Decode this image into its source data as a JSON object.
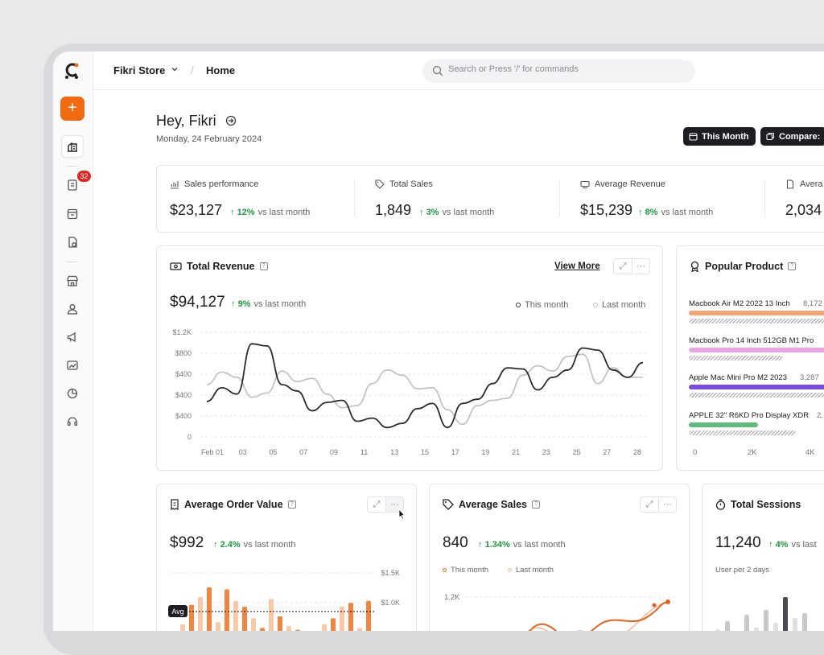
{
  "store": {
    "name": "Fikri Store",
    "crumb": "Home"
  },
  "search": {
    "placeholder": "Search or Press '/' for commands"
  },
  "sidebar": {
    "badge": "32",
    "add_label": "+"
  },
  "header": {
    "greeting": "Hey, Fikri",
    "date": "Monday, 24 February 2024",
    "this_month": "This Month",
    "compare": "Compare: "
  },
  "stats": [
    {
      "label": "Sales performance",
      "value": "$23,127",
      "delta": "12%",
      "vs": "vs last month"
    },
    {
      "label": "Total Sales",
      "value": "1,849",
      "delta": "3%",
      "vs": "vs last month"
    },
    {
      "label": "Average Revenue",
      "value": "$15,239",
      "delta": "8%",
      "vs": "vs last month"
    },
    {
      "label": "Avera",
      "value": "2,034"
    }
  ],
  "revenue": {
    "title": "Total Revenue",
    "view_more": "View More",
    "value": "$94,127",
    "delta": "9%",
    "vs": "vs last month",
    "legend_this": "This month",
    "legend_last": "Last month"
  },
  "chart_data": {
    "type": "line",
    "y_ticks": [
      "$1.2K",
      "$800",
      "$400",
      "$400",
      "$400",
      "0"
    ],
    "x_ticks": [
      "Feb 01",
      "03",
      "05",
      "07",
      "09",
      "11",
      "13",
      "15",
      "17",
      "19",
      "21",
      "23",
      "25",
      "27",
      "28"
    ],
    "series": [
      {
        "name": "This month",
        "color": "#2b2b2e",
        "values": [
          0.34,
          0.47,
          0.41,
          0.89,
          0.87,
          0.5,
          0.44,
          0.25,
          0.33,
          0.35,
          0.15,
          0.18,
          0.09,
          0.13,
          0.27,
          0.32,
          0.09,
          0.32,
          0.36,
          0.51,
          0.66,
          0.65,
          0.45,
          0.57,
          0.64,
          0.85,
          0.83,
          0.64,
          0.57,
          0.71
        ]
      },
      {
        "name": "Last month",
        "color": "#c4c4c8",
        "values": [
          0.5,
          0.62,
          0.57,
          0.38,
          0.42,
          0.63,
          0.53,
          0.56,
          0.41,
          0.28,
          0.3,
          0.51,
          0.64,
          0.59,
          0.46,
          0.47,
          0.26,
          0.12,
          0.3,
          0.35,
          0.37,
          0.59,
          0.68,
          0.63,
          0.77,
          0.79,
          0.51,
          0.66,
          0.57,
          0.57
        ]
      }
    ]
  },
  "popular": {
    "title": "Popular Product",
    "items": [
      {
        "name": "Macbook Air M2 2022 13 Inch",
        "value": "8,172",
        "color": "#f3a57a",
        "fill": 1.0,
        "prev": 1.0
      },
      {
        "name": "Macbook Pro 14 Inch 512GB M1 Pro",
        "value": "",
        "color": "#e8a5e2",
        "fill": 1.0,
        "prev": 0.69
      },
      {
        "name": "Apple Mac Mini Pro M2 2023",
        "value": "3,287",
        "color": "#7a4be0",
        "fill": 0.93,
        "prev": 1.0
      },
      {
        "name": "APPLE 32\" R6KD Pro Display XDR",
        "value": "2,",
        "color": "#5bbd7a",
        "fill": 0.43,
        "prev": 0.78
      }
    ],
    "axis": [
      "0",
      "2K",
      "4K"
    ]
  },
  "aov": {
    "title": "Average Order Value",
    "value": "$992",
    "delta": "2.4%",
    "vs": "vs last month",
    "y_ticks": [
      "$1.5K",
      "$1.0K"
    ],
    "avg_label": "Avg"
  },
  "avg_sales": {
    "title": "Average Sales",
    "value": "840",
    "delta": "1.34%",
    "vs": "vs last month",
    "legend_this": "This month",
    "legend_last": "Last month",
    "y_tick": "1.2K"
  },
  "sessions": {
    "title": "Total Sessions",
    "value": "11,240",
    "delta": "4%",
    "vs": "vs last",
    "sub": "User per 2 days"
  }
}
